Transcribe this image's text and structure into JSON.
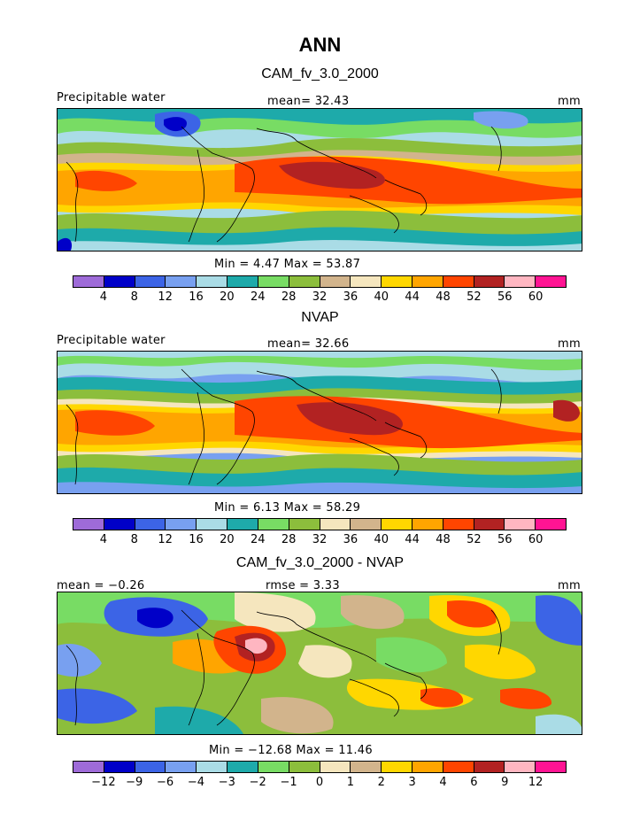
{
  "page_title": "ANN",
  "panels": [
    {
      "title": "CAM_fv_3.0_2000",
      "left_label": "Precipitable water",
      "center_label": "mean=   32.43",
      "right_label": "mm",
      "minmax": "Min =    4.47  Max =   53.87",
      "colorbar": {
        "colors": [
          "#9e6bd8",
          "#0000c8",
          "#3c64e6",
          "#78a0f0",
          "#aadce6",
          "#1eaaaa",
          "#78dc64",
          "#8cbe3c",
          "#d2b48c",
          "#f5e6be",
          "#ffd700",
          "#ffa500",
          "#ff4500",
          "#b22222",
          "#ffb6c1",
          "#ff1493"
        ],
        "ticks": [
          "4",
          "8",
          "12",
          "16",
          "20",
          "24",
          "28",
          "32",
          "36",
          "40",
          "44",
          "48",
          "52",
          "56",
          "60"
        ]
      }
    },
    {
      "title": "NVAP",
      "left_label": "Precipitable water",
      "center_label": "mean=   32.66",
      "right_label": "mm",
      "minmax": "Min =    6.13  Max =   58.29",
      "colorbar": {
        "colors": [
          "#9e6bd8",
          "#0000c8",
          "#3c64e6",
          "#78a0f0",
          "#aadce6",
          "#1eaaaa",
          "#78dc64",
          "#8cbe3c",
          "#f5e6be",
          "#d2b48c",
          "#ffd700",
          "#ffa500",
          "#ff4500",
          "#b22222",
          "#ffb6c1",
          "#ff1493"
        ],
        "ticks": [
          "4",
          "8",
          "12",
          "16",
          "20",
          "24",
          "28",
          "32",
          "36",
          "40",
          "44",
          "48",
          "52",
          "56",
          "60"
        ]
      }
    },
    {
      "title": "CAM_fv_3.0_2000 - NVAP",
      "left_label": "mean =   −0.26",
      "center_label": "rmse =    3.33",
      "right_label": "mm",
      "minmax": "Min = −12.68  Max =   11.46",
      "colorbar": {
        "colors": [
          "#9e6bd8",
          "#0000c8",
          "#3c64e6",
          "#78a0f0",
          "#aadce6",
          "#1eaaaa",
          "#78dc64",
          "#8cbe3c",
          "#f5e6be",
          "#d2b48c",
          "#ffd700",
          "#ffa500",
          "#ff4500",
          "#b22222",
          "#ffb6c1",
          "#ff1493"
        ],
        "ticks": [
          "−12",
          "−9",
          "−6",
          "−4",
          "−3",
          "−2",
          "−1",
          "0",
          "1",
          "2",
          "3",
          "4",
          "6",
          "9",
          "12"
        ]
      }
    }
  ]
}
